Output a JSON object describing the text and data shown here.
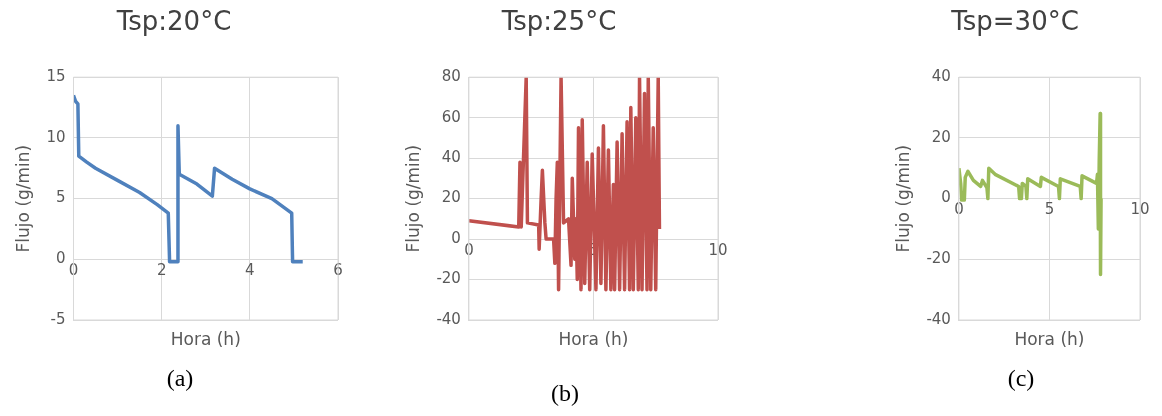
{
  "chart_data": [
    {
      "type": "line",
      "title": "Tsp:20°C",
      "xlabel": "Hora (h)",
      "ylabel": "Flujo (g/min)",
      "annotations": [
        "(a)"
      ],
      "grid": true,
      "marker": "none",
      "xlim": [
        0,
        6
      ],
      "xticks": [
        0,
        2,
        4,
        6
      ],
      "ylim": [
        -5,
        15
      ],
      "yticks": [
        -5,
        0,
        5,
        10,
        15
      ],
      "series": [
        {
          "color": "#4f81bd",
          "x": [
            0,
            0.05,
            0.1,
            0.12,
            0.3,
            0.5,
            1,
            1.5,
            1.9,
            2.15,
            2.18,
            2.35,
            2.37,
            2.4,
            2.8,
            3.15,
            3.2,
            3.6,
            4,
            4.5,
            4.95,
            4.97,
            5.2
          ],
          "values": [
            13.5,
            13,
            12.8,
            8.5,
            8,
            7.5,
            6.5,
            5.5,
            4.5,
            3.8,
            -0.2,
            -0.2,
            11,
            7,
            6.2,
            5.2,
            7.5,
            6.6,
            5.8,
            5,
            3.8,
            -0.2,
            -0.2
          ]
        }
      ]
    },
    {
      "type": "line",
      "title": "Tsp:25°C",
      "xlabel": "Hora (h)",
      "ylabel": "Flujo (g/min)",
      "annotations": [
        "(b)"
      ],
      "grid": true,
      "marker": "none",
      "xlim": [
        0,
        10
      ],
      "xticks": [
        0,
        5,
        10
      ],
      "ylim": [
        -40,
        80
      ],
      "yticks": [
        -40,
        -20,
        0,
        20,
        40,
        60,
        80
      ],
      "series": [
        {
          "color": "#c0504d",
          "x": [
            0,
            2.0,
            2.05,
            2.1,
            2.3,
            2.35,
            2.8,
            2.82,
            2.9,
            2.95,
            3.05,
            3.1,
            3.4,
            3.45,
            3.5,
            3.55,
            3.6,
            3.7,
            3.8,
            4.0,
            4.1,
            4.15,
            4.25,
            4.3,
            4.35,
            4.4,
            4.5,
            4.55,
            4.65,
            4.75,
            4.85,
            4.95,
            5.1,
            5.2,
            5.3,
            5.4,
            5.5,
            5.6,
            5.7,
            5.8,
            5.85,
            5.95,
            6.05,
            6.15,
            6.25,
            6.35,
            6.45,
            6.5,
            6.6,
            6.7,
            6.8,
            6.85,
            6.95,
            7.05,
            7.15,
            7.2,
            7.3,
            7.4,
            7.5,
            7.6,
            7.65
          ],
          "values": [
            9,
            6,
            38,
            6,
            80,
            8,
            7,
            -5,
            20,
            34,
            8,
            0,
            0,
            -12,
            20,
            38,
            -25,
            80,
            8,
            10,
            -13,
            30,
            -10,
            10,
            -20,
            55,
            -25,
            59,
            -22,
            38,
            -25,
            42,
            -25,
            45,
            -22,
            56,
            -25,
            44,
            -25,
            27,
            -25,
            48,
            -25,
            52,
            -25,
            58,
            -25,
            65,
            -25,
            60,
            -25,
            80,
            -25,
            72,
            -25,
            80,
            -25,
            55,
            -25,
            80,
            5
          ]
        }
      ]
    },
    {
      "type": "line",
      "title": "Tsp=30°C",
      "xlabel": "Hora (h)",
      "ylabel": "Flujo (g/min)",
      "annotations": [
        "(c)"
      ],
      "grid": true,
      "marker": "none",
      "xlim": [
        0,
        10
      ],
      "xticks": [
        0,
        5,
        10
      ],
      "ylim": [
        -40,
        40
      ],
      "yticks": [
        -40,
        -20,
        0,
        20,
        40
      ],
      "series": [
        {
          "color": "#9bbb59",
          "x": [
            0,
            0.1,
            0.15,
            0.3,
            0.35,
            0.5,
            0.8,
            1.2,
            1.3,
            1.55,
            1.6,
            1.65,
            2,
            3.3,
            3.35,
            3.45,
            3.5,
            3.7,
            3.75,
            3.8,
            4.5,
            4.55,
            5.5,
            5.55,
            5.6,
            6.7,
            6.75,
            6.8,
            7.6,
            7.65,
            7.7,
            7.75,
            7.8,
            7.82,
            7.85
          ],
          "values": [
            10,
            5,
            -0.5,
            -0.5,
            7,
            9,
            6,
            4,
            6,
            3.5,
            0,
            10,
            8,
            4,
            0,
            0,
            5,
            4,
            0,
            6.5,
            4,
            7,
            4,
            0,
            6.5,
            4,
            0,
            7.5,
            5,
            8,
            -10,
            13,
            28,
            -25,
            0
          ]
        }
      ]
    }
  ]
}
